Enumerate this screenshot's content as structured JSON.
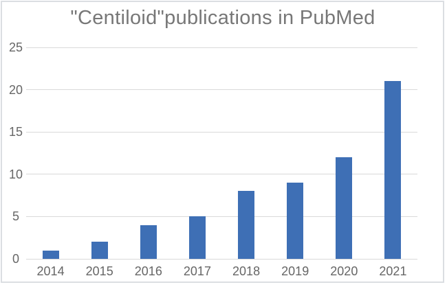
{
  "chart_data": {
    "type": "bar",
    "title": "\"Centiloid\"publications in PubMed",
    "categories": [
      "2014",
      "2015",
      "2016",
      "2017",
      "2018",
      "2019",
      "2020",
      "2021"
    ],
    "values": [
      1,
      2,
      4,
      5,
      8,
      9,
      12,
      21
    ],
    "xlabel": "",
    "ylabel": "",
    "ylim": [
      0,
      25
    ],
    "yticks": [
      0,
      5,
      10,
      15,
      20,
      25
    ],
    "grid": "horizontal",
    "legend": "none",
    "colors": {
      "bar": "#3E6FB5",
      "gridline": "#D9D9D9",
      "tick_label": "#666666",
      "title": "#777777",
      "frame_border": "#DBDEE2",
      "background": "#FFFFFF"
    }
  }
}
